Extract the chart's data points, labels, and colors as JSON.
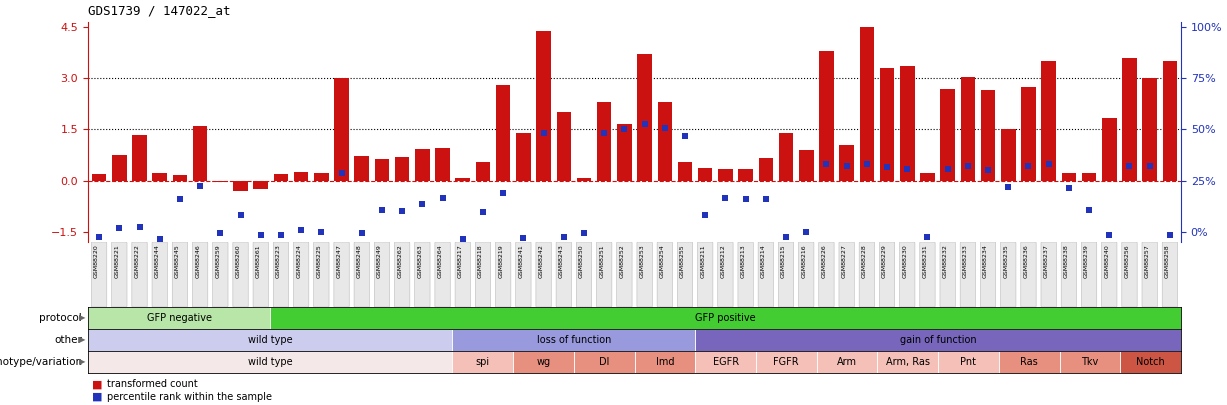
{
  "title": "GDS1739 / 147022_at",
  "samples": [
    "GSM88220",
    "GSM88221",
    "GSM88222",
    "GSM88244",
    "GSM88245",
    "GSM88246",
    "GSM88259",
    "GSM88260",
    "GSM88261",
    "GSM88223",
    "GSM88224",
    "GSM88225",
    "GSM88247",
    "GSM88248",
    "GSM88249",
    "GSM88262",
    "GSM88263",
    "GSM88264",
    "GSM88217",
    "GSM88218",
    "GSM88219",
    "GSM88241",
    "GSM88242",
    "GSM88243",
    "GSM88250",
    "GSM88251",
    "GSM88252",
    "GSM88253",
    "GSM88254",
    "GSM88255",
    "GSM88211",
    "GSM88212",
    "GSM88213",
    "GSM88214",
    "GSM88215",
    "GSM88216",
    "GSM88226",
    "GSM88227",
    "GSM88228",
    "GSM88229",
    "GSM88230",
    "GSM88231",
    "GSM88232",
    "GSM88233",
    "GSM88234",
    "GSM88235",
    "GSM88236",
    "GSM88237",
    "GSM88238",
    "GSM88239",
    "GSM88240",
    "GSM88256",
    "GSM88257",
    "GSM88258"
  ],
  "bar_values": [
    0.18,
    0.75,
    1.35,
    0.22,
    0.15,
    1.6,
    -0.05,
    -0.3,
    -0.25,
    0.18,
    0.25,
    0.23,
    3.0,
    0.72,
    0.62,
    0.68,
    0.92,
    0.95,
    0.08,
    0.55,
    2.8,
    1.4,
    4.4,
    2.0,
    0.08,
    2.3,
    1.65,
    3.7,
    2.3,
    0.55,
    0.38,
    0.35,
    0.35,
    0.65,
    1.4,
    0.9,
    3.8,
    1.05,
    4.5,
    3.3,
    3.35,
    0.22,
    2.7,
    3.05,
    2.65,
    1.5,
    2.75,
    3.5,
    0.22,
    0.22,
    1.85,
    3.6,
    3.0,
    3.5
  ],
  "blue_values": [
    -1.65,
    -1.4,
    -1.35,
    -1.7,
    -0.55,
    -0.15,
    -1.55,
    -1.0,
    -1.6,
    -1.6,
    -1.45,
    -1.5,
    0.22,
    -1.55,
    -0.85,
    -0.88,
    -0.7,
    -0.5,
    -1.7,
    -0.92,
    -0.35,
    -1.68,
    1.4,
    -1.65,
    -1.55,
    1.4,
    1.5,
    1.65,
    1.55,
    1.3,
    -1.0,
    -0.5,
    -0.55,
    -0.55,
    -1.65,
    -1.5,
    0.5,
    0.42,
    0.5,
    0.4,
    0.35,
    -1.65,
    0.35,
    0.42,
    0.3,
    -0.2,
    0.42,
    0.5,
    -0.22,
    -0.85,
    -1.6,
    0.42,
    0.42,
    -1.6
  ],
  "protocol_groups": [
    {
      "label": "GFP negative",
      "start": 0,
      "end": 9,
      "color": "#b8e6a8"
    },
    {
      "label": "GFP positive",
      "start": 9,
      "end": 54,
      "color": "#44cc33"
    }
  ],
  "other_groups": [
    {
      "label": "wild type",
      "start": 0,
      "end": 18,
      "color": "#ccccee"
    },
    {
      "label": "loss of function",
      "start": 18,
      "end": 30,
      "color": "#9999dd"
    },
    {
      "label": "gain of function",
      "start": 30,
      "end": 54,
      "color": "#7766bb"
    }
  ],
  "genotype_groups": [
    {
      "label": "wild type",
      "start": 0,
      "end": 18,
      "color": "#f5e8e8"
    },
    {
      "label": "spi",
      "start": 18,
      "end": 21,
      "color": "#f5c0b8"
    },
    {
      "label": "wg",
      "start": 21,
      "end": 24,
      "color": "#e89080"
    },
    {
      "label": "Dl",
      "start": 24,
      "end": 27,
      "color": "#e89080"
    },
    {
      "label": "Imd",
      "start": 27,
      "end": 30,
      "color": "#e89080"
    },
    {
      "label": "EGFR",
      "start": 30,
      "end": 33,
      "color": "#f5c0b8"
    },
    {
      "label": "FGFR",
      "start": 33,
      "end": 36,
      "color": "#f5c0b8"
    },
    {
      "label": "Arm",
      "start": 36,
      "end": 39,
      "color": "#f5c0b8"
    },
    {
      "label": "Arm, Ras",
      "start": 39,
      "end": 42,
      "color": "#f5c0b8"
    },
    {
      "label": "Pnt",
      "start": 42,
      "end": 45,
      "color": "#f5c0b8"
    },
    {
      "label": "Ras",
      "start": 45,
      "end": 48,
      "color": "#e89080"
    },
    {
      "label": "Tkv",
      "start": 48,
      "end": 51,
      "color": "#e89080"
    },
    {
      "label": "Notch",
      "start": 51,
      "end": 54,
      "color": "#cc5544"
    }
  ],
  "ylim": [
    -1.8,
    4.65
  ],
  "yticks_left": [
    -1.5,
    0.0,
    1.5,
    3.0,
    4.5
  ],
  "right_pct_ticks": [
    0,
    25,
    50,
    75,
    100
  ],
  "right_pct_at_left": [
    -1.5,
    0.0,
    1.5,
    3.0,
    4.5
  ],
  "hlines_dotted": [
    1.5,
    3.0
  ],
  "hline_dashed_red": 0.0,
  "bar_color": "#cc1111",
  "blue_color": "#2233bb",
  "legend_red": "transformed count",
  "legend_blue": "percentile rank within the sample"
}
